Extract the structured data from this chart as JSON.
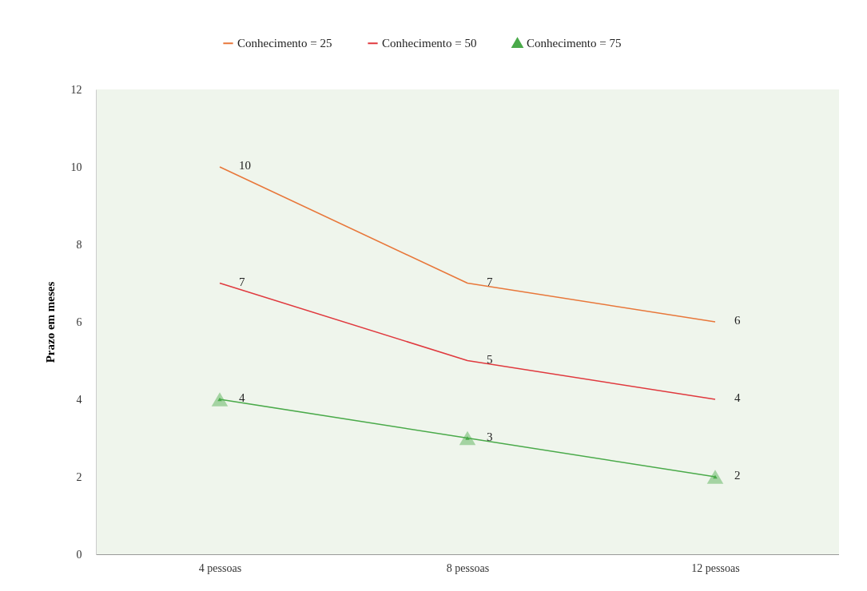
{
  "chart_data": {
    "type": "line",
    "ylabel": "Prazo em meses",
    "categories": [
      "4 pessoas",
      "8 pessoas",
      "12 pessoas"
    ],
    "series": [
      {
        "name": "Conhecimento = 25",
        "color": "#e8773a",
        "marker": "none",
        "values": [
          10,
          7,
          6
        ]
      },
      {
        "name": "Conhecimento = 50",
        "color": "#e0393e",
        "marker": "none",
        "values": [
          7,
          5,
          4
        ]
      },
      {
        "name": "Conhecimento = 75",
        "color": "#4aaa4a",
        "marker": "triangle",
        "values": [
          4,
          3,
          2
        ]
      }
    ],
    "ylim": [
      0,
      12
    ],
    "yticks": [
      0,
      2,
      4,
      6,
      8,
      10,
      12
    ],
    "grid": false,
    "legend": "top",
    "data_labels": true
  }
}
